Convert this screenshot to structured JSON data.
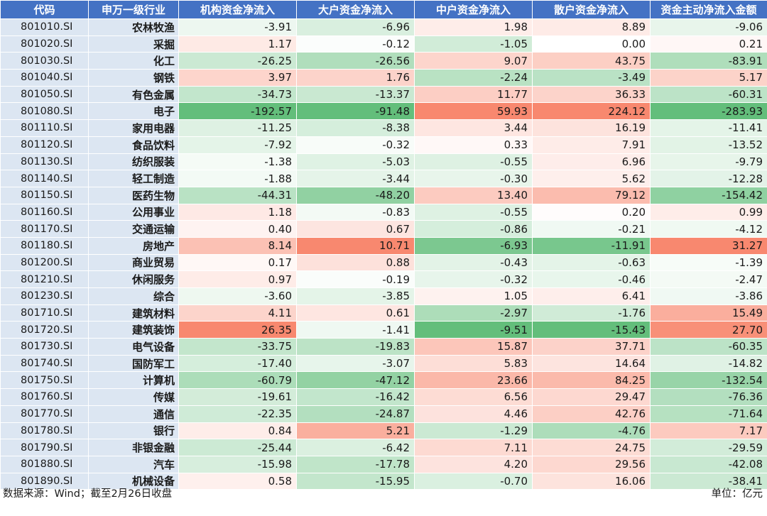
{
  "table": {
    "headers": [
      "代码",
      "申万一级行业",
      "机构资金净流入",
      "大户资金净流入",
      "中户资金净流入",
      "散户资金净流入",
      "资金主动净流入金额"
    ],
    "rows": [
      {
        "code": "801010.SI",
        "industry": "农林牧渔",
        "values": [
          "-3.91",
          "-6.96",
          "1.98",
          "8.89",
          "-9.06"
        ]
      },
      {
        "code": "801020.SI",
        "industry": "采掘",
        "values": [
          "1.17",
          "-0.12",
          "-1.05",
          "0.00",
          "0.21"
        ]
      },
      {
        "code": "801030.SI",
        "industry": "化工",
        "values": [
          "-26.25",
          "-26.56",
          "9.07",
          "43.75",
          "-83.91"
        ]
      },
      {
        "code": "801040.SI",
        "industry": "钢铁",
        "values": [
          "3.97",
          "1.76",
          "-2.24",
          "-3.49",
          "5.17"
        ]
      },
      {
        "code": "801050.SI",
        "industry": "有色金属",
        "values": [
          "-34.73",
          "-13.37",
          "11.77",
          "36.33",
          "-60.31"
        ]
      },
      {
        "code": "801080.SI",
        "industry": "电子",
        "values": [
          "-192.57",
          "-91.48",
          "59.93",
          "224.12",
          "-283.93"
        ]
      },
      {
        "code": "801110.SI",
        "industry": "家用电器",
        "values": [
          "-11.25",
          "-8.38",
          "3.44",
          "16.19",
          "-11.41"
        ]
      },
      {
        "code": "801120.SI",
        "industry": "食品饮料",
        "values": [
          "-7.92",
          "-0.32",
          "0.33",
          "7.91",
          "-13.52"
        ]
      },
      {
        "code": "801130.SI",
        "industry": "纺织服装",
        "values": [
          "-1.38",
          "-5.03",
          "-0.55",
          "6.96",
          "-9.79"
        ]
      },
      {
        "code": "801140.SI",
        "industry": "轻工制造",
        "values": [
          "-1.88",
          "-3.44",
          "-0.30",
          "5.62",
          "-12.28"
        ]
      },
      {
        "code": "801150.SI",
        "industry": "医药生物",
        "values": [
          "-44.31",
          "-48.20",
          "13.40",
          "79.12",
          "-154.42"
        ]
      },
      {
        "code": "801160.SI",
        "industry": "公用事业",
        "values": [
          "1.18",
          "-0.83",
          "-0.55",
          "0.20",
          "0.99"
        ]
      },
      {
        "code": "801170.SI",
        "industry": "交通运输",
        "values": [
          "0.40",
          "0.67",
          "-0.86",
          "-0.21",
          "-4.12"
        ]
      },
      {
        "code": "801180.SI",
        "industry": "房地产",
        "values": [
          "8.14",
          "10.71",
          "-6.93",
          "-11.91",
          "31.27"
        ]
      },
      {
        "code": "801200.SI",
        "industry": "商业贸易",
        "values": [
          "0.17",
          "0.88",
          "-0.43",
          "-0.63",
          "-1.39"
        ]
      },
      {
        "code": "801210.SI",
        "industry": "休闲服务",
        "values": [
          "0.97",
          "-0.19",
          "-0.32",
          "-0.46",
          "-2.47"
        ]
      },
      {
        "code": "801230.SI",
        "industry": "综合",
        "values": [
          "-3.60",
          "-3.85",
          "1.05",
          "6.41",
          "-3.86"
        ]
      },
      {
        "code": "801710.SI",
        "industry": "建筑材料",
        "values": [
          "4.11",
          "0.61",
          "-2.97",
          "-1.76",
          "15.49"
        ]
      },
      {
        "code": "801720.SI",
        "industry": "建筑装饰",
        "values": [
          "26.35",
          "-1.41",
          "-9.51",
          "-15.43",
          "27.70"
        ]
      },
      {
        "code": "801730.SI",
        "industry": "电气设备",
        "values": [
          "-33.75",
          "-19.83",
          "15.87",
          "37.71",
          "-60.35"
        ]
      },
      {
        "code": "801740.SI",
        "industry": "国防军工",
        "values": [
          "-17.40",
          "-3.07",
          "5.83",
          "14.64",
          "-14.82"
        ]
      },
      {
        "code": "801750.SI",
        "industry": "计算机",
        "values": [
          "-60.79",
          "-47.12",
          "23.66",
          "84.25",
          "-132.54"
        ]
      },
      {
        "code": "801760.SI",
        "industry": "传媒",
        "values": [
          "-19.61",
          "-16.42",
          "6.56",
          "29.47",
          "-76.36"
        ]
      },
      {
        "code": "801770.SI",
        "industry": "通信",
        "values": [
          "-22.35",
          "-24.87",
          "4.46",
          "42.76",
          "-71.64"
        ]
      },
      {
        "code": "801780.SI",
        "industry": "银行",
        "values": [
          "0.84",
          "5.21",
          "-1.29",
          "-4.76",
          "7.17"
        ]
      },
      {
        "code": "801790.SI",
        "industry": "非银金融",
        "values": [
          "-25.44",
          "-6.42",
          "7.11",
          "24.75",
          "-29.59"
        ]
      },
      {
        "code": "801880.SI",
        "industry": "汽车",
        "values": [
          "-15.98",
          "-17.78",
          "4.20",
          "29.56",
          "-42.08"
        ]
      },
      {
        "code": "801890.SI",
        "industry": "机械设备",
        "values": [
          "0.58",
          "-15.95",
          "-0.70",
          "16.06",
          "-38.41"
        ]
      }
    ]
  },
  "footer": {
    "source": "数据来源：Wind；截至2月26日收盘",
    "unit": "单位：亿元"
  },
  "colors": {
    "header_bg": "#4472c4",
    "label_bg": "#dce6f2",
    "positive_max": "#f8886f",
    "negative_max": "#63be7b",
    "neutral": "#ffffff"
  }
}
